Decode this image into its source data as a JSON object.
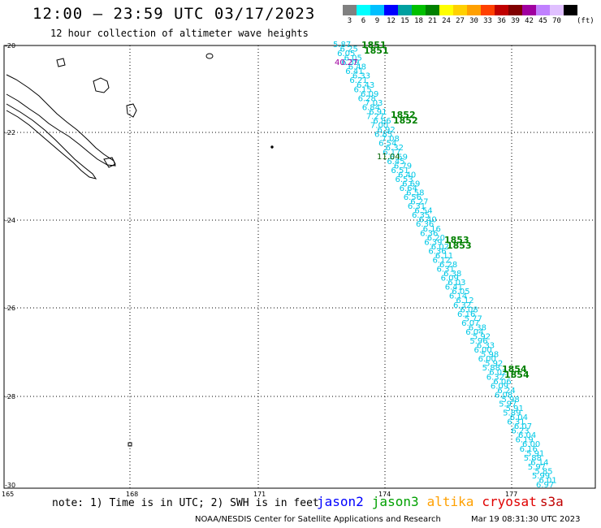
{
  "title": "12:00 – 23:59 UTC 03/17/2023",
  "subtitle": "12 hour collection of altimeter wave heights",
  "legend": {
    "colors": [
      "#808080",
      "#00ffff",
      "#00c0ff",
      "#0000ff",
      "#00a0a0",
      "#00c000",
      "#008000",
      "#ffff00",
      "#ffd000",
      "#ffa000",
      "#ff4000",
      "#c00000",
      "#800000",
      "#a000a0",
      "#c080ff",
      "#e0c0ff",
      "#000000"
    ],
    "labels": [
      "3",
      "6",
      "9",
      "12",
      "15",
      "18",
      "21",
      "24",
      "27",
      "30",
      "33",
      "36",
      "39",
      "42",
      "45",
      "70"
    ],
    "unit": "(ft)"
  },
  "axes": {
    "lon_labels": [
      "165",
      "168",
      "171",
      "174",
      "177"
    ],
    "lat_labels": [
      "-20",
      "-22",
      "-24",
      "-26",
      "-28",
      "-30"
    ]
  },
  "track": {
    "color": "#00c8e6",
    "values": [
      "5.87",
      "6.25",
      "6.05",
      "6.05",
      "6.39",
      "6.48",
      "6.41",
      "6.33",
      "6.21",
      "6.43",
      "6.15",
      "6.09",
      "6.28",
      "7.03",
      "6.84",
      "6.91",
      "7.27",
      "6.86",
      "7.00",
      "6.92",
      "6.85",
      "7.08",
      "6.54",
      "6.32",
      "6.17",
      "6.59",
      "6.45",
      "6.79",
      "6.51",
      "6.40",
      "6.53",
      "6.69",
      "6.64",
      "6.58",
      "6.56",
      "6.27",
      "6.31",
      "6.54",
      "6.35",
      "6.40",
      "6.36",
      "6.16",
      "6.36",
      "6.20",
      "6.39",
      "6.02",
      "6.36",
      "6.11",
      "6.12",
      "6.28",
      "6.31",
      "6.38",
      "6.09",
      "6.03",
      "6.41",
      "6.05",
      "6.14",
      "6.12",
      "6.32",
      "6.08",
      "6.16",
      "5.77",
      "6.07",
      "6.38",
      "6.04",
      "5.92",
      "5.96",
      "6.33",
      "6.00",
      "5.98",
      "6.00",
      "5.92",
      "5.88",
      "6.02",
      "6.32",
      "6.06",
      "6.09",
      "6.24",
      "6.08",
      "5.98",
      "5.97",
      "5.91",
      "5.89",
      "6.04",
      "6.31",
      "6.07",
      "6.23",
      "6.04",
      "6.19",
      "6.00",
      "6.16",
      "5.91",
      "5.88",
      "6.14",
      "5.97",
      "5.85",
      "5.99",
      "6.01",
      "6.97"
    ],
    "outliers": [
      {
        "value": "40.27",
        "color": "#a000a0"
      },
      {
        "value": "11.04",
        "color": "#006000"
      }
    ]
  },
  "times": {
    "color": "#008000",
    "labels": [
      "1851",
      "1852",
      "1853",
      "1854"
    ]
  },
  "note": "note: 1) Time is in UTC; 2) SWH is in feet",
  "satellites": [
    {
      "name": "jason2",
      "color": "#0000ff"
    },
    {
      "name": "jason3",
      "color": "#00a000"
    },
    {
      "name": "altika",
      "color": "#ffa000"
    },
    {
      "name": "cryosat",
      "color": "#e00000"
    },
    {
      "name": "s3a",
      "color": "#c00000"
    }
  ],
  "footer": {
    "left": "NOAA/NESDIS Center for Satellite Applications and Research",
    "right": "Mar 19 08:31:30 UTC 2023"
  }
}
